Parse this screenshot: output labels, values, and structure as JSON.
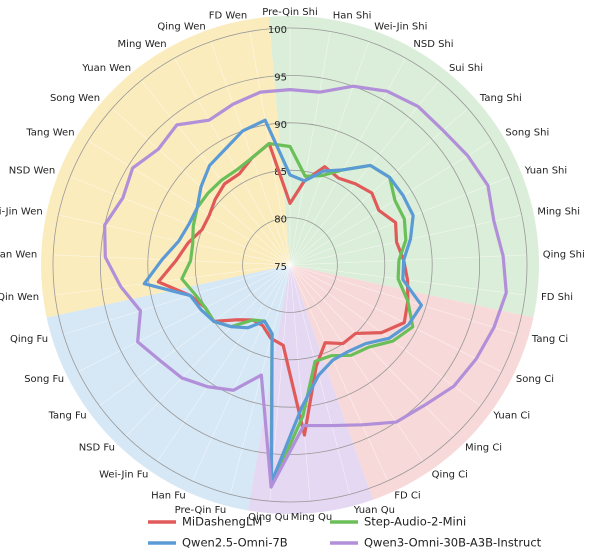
{
  "chart_data": {
    "type": "radar",
    "categories": [
      "Pre-Qin Shi",
      "Han Shi",
      "Wei-Jin Shi",
      "NSD Shi",
      "Sui Shi",
      "Tang Shi",
      "Song Shi",
      "Yuan Shi",
      "Ming Shi",
      "Qing Shi",
      "FD Shi",
      "Tang Ci",
      "Song Ci",
      "Yuan Ci",
      "Ming Ci",
      "Qing Ci",
      "FD Ci",
      "Yuan Qu",
      "Ming Qu",
      "Qing Qu",
      "Pre-Qin Fu",
      "Han Fu",
      "Wei-Jin Fu",
      "NSD Fu",
      "Tang Fu",
      "Song Fu",
      "Qing Fu",
      "Pre-Qin Wen",
      "Han Wen",
      "Wei-Jin Wen",
      "NSD Wen",
      "Tang Wen",
      "Song Wen",
      "Yuan Wen",
      "Ming Wen",
      "Qing Wen",
      "FD Wen"
    ],
    "ylim": [
      75,
      100
    ],
    "yticks": [
      75,
      80,
      85,
      90,
      95,
      100
    ],
    "grid": true,
    "series": [
      {
        "name": "MiDashengLM",
        "color": "#e05a5a",
        "values": [
          81.5,
          84,
          86,
          85.5,
          86,
          86.5,
          86,
          87,
          86.5,
          87,
          87.5,
          88,
          88.5,
          87,
          85,
          85,
          84,
          86,
          93,
          83.5,
          83,
          82,
          82,
          83,
          85,
          85,
          86,
          89,
          87,
          86,
          85,
          85,
          85.5,
          86,
          86,
          87,
          88
        ]
      },
      {
        "name": "Step-Audio-2-Mini",
        "color": "#6bbf59",
        "values": [
          87.5,
          84.5,
          85,
          86.5,
          88.5,
          89,
          88,
          88,
          87.5,
          86.5,
          86.5,
          88,
          89.5,
          88.5,
          87,
          86.5,
          85.5,
          85.5,
          91,
          98.5,
          82.5,
          81.5,
          82,
          84,
          85,
          85,
          85.5,
          86.5,
          85.5,
          85.5,
          86,
          86.5,
          86.5,
          86.5,
          86.5,
          87,
          88
        ]
      },
      {
        "name": "Qwen2.5-Omni-7B",
        "color": "#5b9bd5",
        "values": [
          84.5,
          84,
          85.5,
          86.5,
          88.5,
          89,
          89,
          89,
          88,
          87,
          87,
          89.5,
          89,
          88,
          86.5,
          86,
          86,
          87,
          90,
          98,
          82.5,
          81.5,
          83,
          84,
          85,
          85.5,
          86,
          90.5,
          88.5,
          87,
          86.5,
          86.5,
          87.5,
          88.5,
          89,
          90,
          90.5
        ]
      },
      {
        "name": "Qwen3-Omni-30B-A3B-Instruct",
        "color": "#b28fd9",
        "values": [
          93.5,
          93.5,
          95,
          96,
          96.5,
          96.5,
          97,
          97.5,
          97,
          97.5,
          98,
          97.5,
          97,
          96.5,
          95.5,
          95,
          93.5,
          92.5,
          92,
          98.5,
          87,
          89.5,
          90.5,
          91.5,
          92,
          93,
          91.5,
          93,
          94.5,
          95,
          94,
          94.5,
          93.5,
          94,
          92.5,
          93,
          93.5
        ]
      }
    ]
  }
}
